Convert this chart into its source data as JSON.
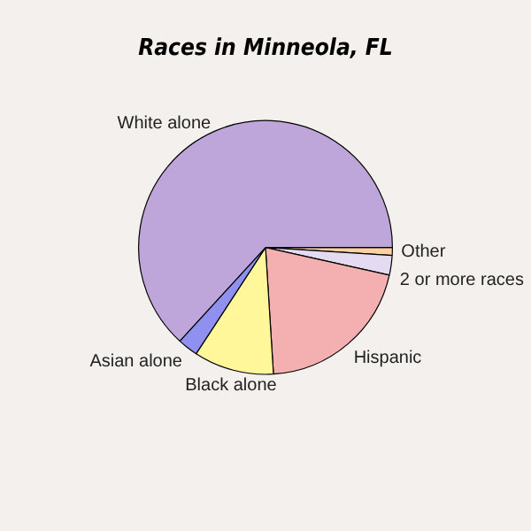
{
  "chart_data": {
    "type": "pie",
    "title": "Races in Minneola, FL",
    "categories": [
      "Other",
      "2 or more races",
      "Hispanic",
      "Black alone",
      "Asian alone",
      "White alone"
    ],
    "values": [
      1,
      2.5,
      20.5,
      10.2,
      2.6,
      63.2
    ],
    "colors": [
      "#ffd0a0",
      "#e4daf2",
      "#f4b0b0",
      "#fff799",
      "#9090f0",
      "#bea6da"
    ],
    "legend": false
  }
}
